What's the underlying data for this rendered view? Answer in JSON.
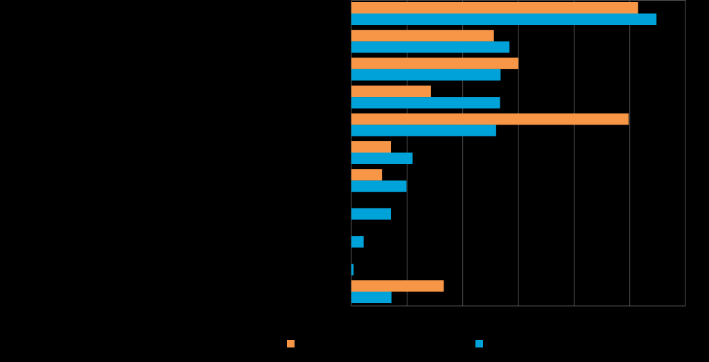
{
  "chart_data": {
    "type": "bar",
    "orientation": "horizontal",
    "categories": [
      "",
      "",
      "",
      "",
      "",
      "",
      "",
      "",
      "",
      "",
      ""
    ],
    "series": [
      {
        "name": "",
        "color": "#F79646",
        "values": [
          51.5,
          25.6,
          30.0,
          14.3,
          49.8,
          7.1,
          5.5,
          0,
          0,
          0,
          16.6
        ]
      },
      {
        "name": "",
        "color": "#00A3D9",
        "values": [
          54.8,
          28.4,
          26.8,
          26.7,
          26.0,
          11.0,
          9.9,
          7.1,
          2.2,
          0.4,
          7.2
        ]
      }
    ],
    "xlim": [
      0,
      60
    ],
    "xticks": [
      0,
      10,
      20,
      30,
      40,
      50,
      60
    ],
    "grid": true,
    "legend_position": "bottom",
    "background": "#000000",
    "gridline_color": "#555555"
  }
}
